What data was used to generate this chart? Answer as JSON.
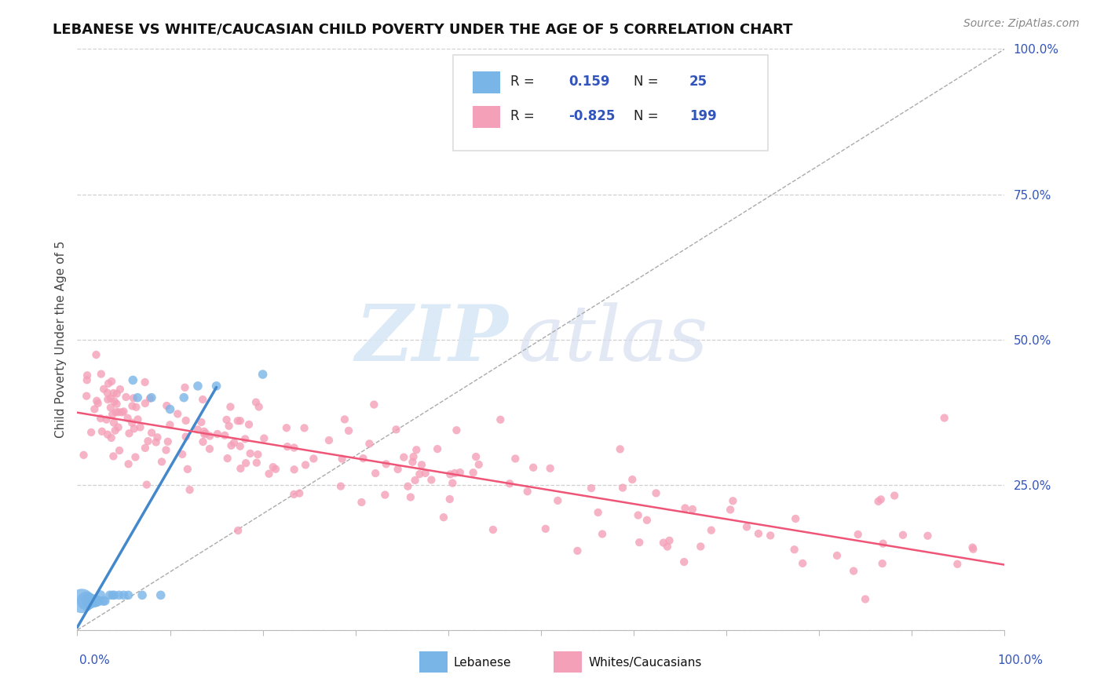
{
  "title": "LEBANESE VS WHITE/CAUCASIAN CHILD POVERTY UNDER THE AGE OF 5 CORRELATION CHART",
  "source": "Source: ZipAtlas.com",
  "ylabel": "Child Poverty Under the Age of 5",
  "xlim": [
    0.0,
    1.0
  ],
  "ylim": [
    0.0,
    1.0
  ],
  "ytick_values": [
    0.0,
    0.25,
    0.5,
    0.75,
    1.0
  ],
  "background_color": "#ffffff",
  "grid_color": "#d0d0d0",
  "accent_color": "#3355bb",
  "legend_label1": "Lebanese",
  "legend_label2": "Whites/Caucasians",
  "R1": 0.159,
  "N1": 25,
  "R2": -0.825,
  "N2": 199,
  "scatter_color_leb": "#7ab5e8",
  "scatter_color_wh": "#f4a0b8",
  "line_color_leb": "#4488cc",
  "line_color_wh": "#ee5577",
  "title_fontsize": 13,
  "source_fontsize": 10,
  "leb_x": [
    0.005,
    0.01,
    0.013,
    0.018,
    0.02,
    0.022,
    0.025,
    0.028,
    0.03,
    0.035,
    0.038,
    0.04,
    0.045,
    0.05,
    0.055,
    0.06,
    0.065,
    0.07,
    0.08,
    0.09,
    0.1,
    0.115,
    0.13,
    0.15,
    0.2
  ],
  "leb_y": [
    0.05,
    0.05,
    0.05,
    0.05,
    0.05,
    0.05,
    0.06,
    0.05,
    0.05,
    0.06,
    0.06,
    0.06,
    0.06,
    0.06,
    0.06,
    0.43,
    0.4,
    0.06,
    0.4,
    0.06,
    0.38,
    0.4,
    0.42,
    0.42,
    0.44
  ],
  "leb_s": [
    500,
    300,
    200,
    150,
    120,
    100,
    80,
    80,
    70,
    70,
    70,
    70,
    70,
    70,
    70,
    70,
    70,
    70,
    70,
    70,
    70,
    70,
    70,
    70,
    70
  ]
}
